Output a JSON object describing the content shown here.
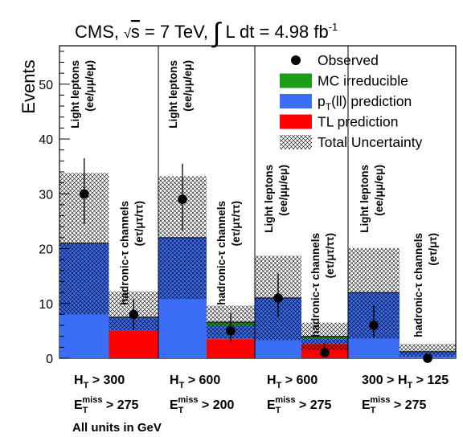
{
  "chart_data": {
    "type": "bar",
    "stacked": true,
    "title": {
      "pre": "CMS, ",
      "sqrt_s": "s",
      "energy": " = 7 TeV, ",
      "lumi_expr": "L dt = 4.98 fb",
      "lumi_exp": "-1"
    },
    "ylabel": "Events",
    "ylim": [
      0,
      57
    ],
    "yticks": [
      0,
      10,
      20,
      30,
      40,
      50
    ],
    "legend": {
      "placement": "top-right",
      "items": [
        {
          "key": "observed",
          "label": "Observed"
        },
        {
          "key": "mc",
          "label": "MC irreducible"
        },
        {
          "key": "pt_main",
          "label": "p",
          "sub": "T",
          "rest": "(ll) prediction"
        },
        {
          "key": "tl",
          "label": "TL prediction"
        },
        {
          "key": "unc",
          "label": "Total Uncertainty"
        }
      ]
    },
    "colors": {
      "mc": "#1a9e1a",
      "pt": "#3b6ef5",
      "tl": "#ff0000",
      "unc": "#000000",
      "observed": "#000000"
    },
    "bins": [
      {
        "label1": "Light leptons",
        "label2": "(ee/μμ/eμ)",
        "tl": 0.0,
        "pt": 21.0,
        "mc": 0.0,
        "total": 21.0,
        "unc_low": 8.0,
        "unc_high": 33.8,
        "obs": 30,
        "obs_low": 24.5,
        "obs_high": 36.5
      },
      {
        "label1": "hadronic-τ channels",
        "label2": "(eτ/μτ/ττ)",
        "tl": 5.0,
        "pt": 2.5,
        "mc": 0.0,
        "total": 7.5,
        "unc_low": 5.0,
        "unc_high": 12.2,
        "obs": 8,
        "obs_low": 5.2,
        "obs_high": 10.8
      },
      {
        "label1": "Light leptons",
        "label2": "(ee/μμ/eμ)",
        "tl": 0.0,
        "pt": 22.0,
        "mc": 0.0,
        "total": 22.0,
        "unc_low": 10.8,
        "unc_high": 33.2,
        "obs": 29,
        "obs_low": 23.3,
        "obs_high": 35.5
      },
      {
        "label1": "hadronic-τ channels",
        "label2": "(eτ/μτ/ττ)",
        "tl": 3.5,
        "pt": 2.5,
        "mc": 0.6,
        "total": 6.6,
        "unc_low": 3.6,
        "unc_high": 9.6,
        "obs": 5,
        "obs_low": 2.8,
        "obs_high": 8.3
      },
      {
        "label1": "Light leptons",
        "label2": "(ee/μμ/eμ)",
        "tl": 0.0,
        "pt": 11.0,
        "mc": 0.0,
        "total": 11.0,
        "unc_low": 3.3,
        "unc_high": 18.7,
        "obs": 11,
        "obs_low": 7.5,
        "obs_high": 15.5
      },
      {
        "label1": "hadronic-τ channels",
        "label2": "(eτ/μτ/ττ)",
        "tl": 2.6,
        "pt": 1.0,
        "mc": 0.4,
        "total": 4.0,
        "unc_low": 1.5,
        "unc_high": 6.5,
        "obs": 1,
        "obs_low": 0.2,
        "obs_high": 2.7
      },
      {
        "label1": "Light leptons",
        "label2": "(ee/μμ/eμ)",
        "tl": 0.0,
        "pt": 12.0,
        "mc": 0.0,
        "total": 12.0,
        "unc_low": 3.6,
        "unc_high": 20.1,
        "obs": 6,
        "obs_low": 3.8,
        "obs_high": 9.6
      },
      {
        "label1": "hadronic-τ channels",
        "label2": "(eτ/μτ)",
        "tl": 0.0,
        "pt": 1.2,
        "mc": 0.0,
        "total": 1.2,
        "unc_low": 0.3,
        "unc_high": 2.6,
        "obs": 0,
        "obs_low": 0,
        "obs_high": 0
      }
    ],
    "regions": [
      {
        "ht": "> 300",
        "ht_pre": "",
        "met": "> 275"
      },
      {
        "ht": "> 600",
        "ht_pre": "",
        "met": "> 200"
      },
      {
        "ht": "> 600",
        "ht_pre": "",
        "met": "> 275"
      },
      {
        "ht": " > 125",
        "ht_pre": "300 > ",
        "met": "> 275"
      }
    ],
    "units_note": "All units in GeV"
  }
}
